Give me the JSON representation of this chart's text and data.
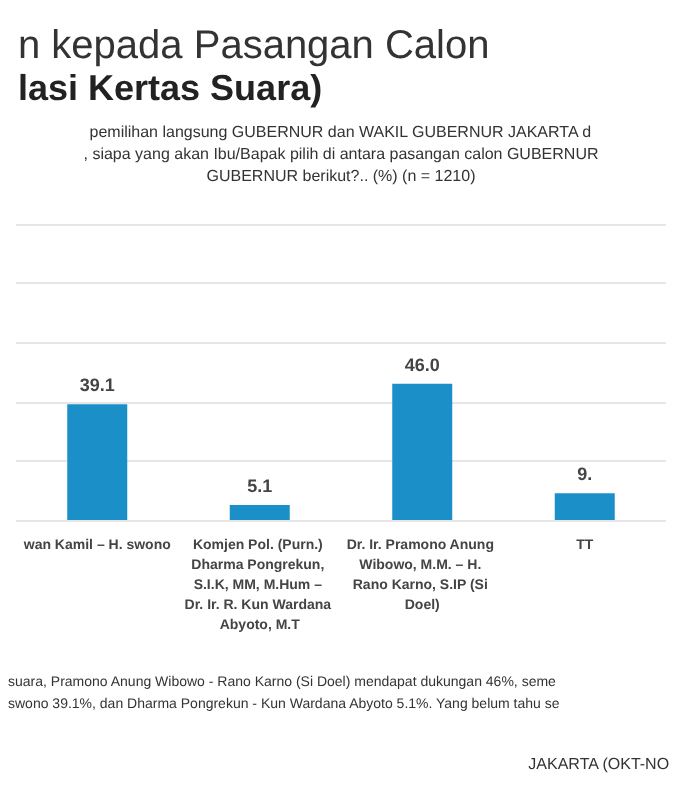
{
  "chart_data": {
    "type": "bar",
    "title": "n kepada Pasangan Calon",
    "subtitle": "lasi Kertas Suara)",
    "annotations": [
      "pemilihan langsung GUBERNUR dan WAKIL GUBERNUR JAKARTA d",
      ", siapa yang akan Ibu/Bapak pilih di antara pasangan calon GUBERNUR",
      "GUBERNUR berikut?.. (%) (n = 1210)",
      "suara, Pramono Anung Wibowo - Rano Karno (Si Doel) mendapat dukungan 46%, seme",
      "swono 39.1%, dan Dharma Pongrekun - Kun Wardana Abyoto 5.1%. Yang belum tahu se",
      "JAKARTA (OKT-NO"
    ],
    "categories": [
      "wan Kamil – H. swono",
      "Komjen Pol. (Purn.) Dharma Pongrekun, S.I.K, MM, M.Hum – Dr. Ir. R. Kun Wardana Abyoto, M.T",
      "Dr. Ir. Pramono Anung Wibowo, M.M. – H. Rano Karno, S.IP (Si Doel)",
      "TT"
    ],
    "values": [
      39.1,
      5.1,
      46.0,
      9
    ],
    "value_labels": [
      "39.1",
      "5.1",
      "46.0",
      "9."
    ],
    "color": "#1b8fc8",
    "ylim": [
      0,
      100
    ],
    "yticks": [
      {
        "value": 0,
        "label": null
      },
      {
        "value": 20,
        "label": null
      },
      {
        "value": 40,
        "label": null
      },
      {
        "value": 60,
        "label": null
      },
      {
        "value": 80,
        "label": null
      },
      {
        "value": 100,
        "label": null
      }
    ],
    "grid": "y",
    "tick_labels": "x"
  }
}
